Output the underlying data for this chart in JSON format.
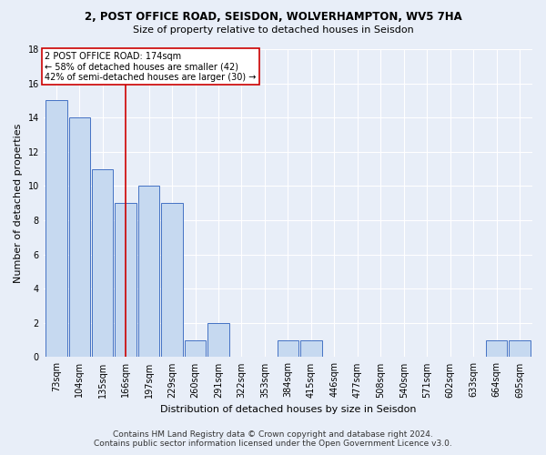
{
  "title": "2, POST OFFICE ROAD, SEISDON, WOLVERHAMPTON, WV5 7HA",
  "subtitle": "Size of property relative to detached houses in Seisdon",
  "xlabel": "Distribution of detached houses by size in Seisdon",
  "ylabel": "Number of detached properties",
  "bin_labels": [
    "73sqm",
    "104sqm",
    "135sqm",
    "166sqm",
    "197sqm",
    "229sqm",
    "260sqm",
    "291sqm",
    "322sqm",
    "353sqm",
    "384sqm",
    "415sqm",
    "446sqm",
    "477sqm",
    "508sqm",
    "540sqm",
    "571sqm",
    "602sqm",
    "633sqm",
    "664sqm",
    "695sqm"
  ],
  "bar_values": [
    15,
    14,
    11,
    9,
    10,
    9,
    1,
    2,
    0,
    0,
    1,
    1,
    0,
    0,
    0,
    0,
    0,
    0,
    0,
    1,
    1
  ],
  "bar_color": "#c6d9f0",
  "bar_edge_color": "#4472c4",
  "vline_x": 3,
  "vline_color": "#cc0000",
  "annotation_text": "2 POST OFFICE ROAD: 174sqm\n← 58% of detached houses are smaller (42)\n42% of semi-detached houses are larger (30) →",
  "annotation_box_facecolor": "#ffffff",
  "annotation_box_edgecolor": "#cc0000",
  "ylim": [
    0,
    18
  ],
  "yticks": [
    0,
    2,
    4,
    6,
    8,
    10,
    12,
    14,
    16,
    18
  ],
  "footer": "Contains HM Land Registry data © Crown copyright and database right 2024.\nContains public sector information licensed under the Open Government Licence v3.0.",
  "bg_color": "#e8eef8",
  "grid_color": "#ffffff",
  "title_fontsize": 8.5,
  "subtitle_fontsize": 8,
  "ylabel_fontsize": 8,
  "xlabel_fontsize": 8,
  "tick_fontsize": 7,
  "footer_fontsize": 6.5
}
